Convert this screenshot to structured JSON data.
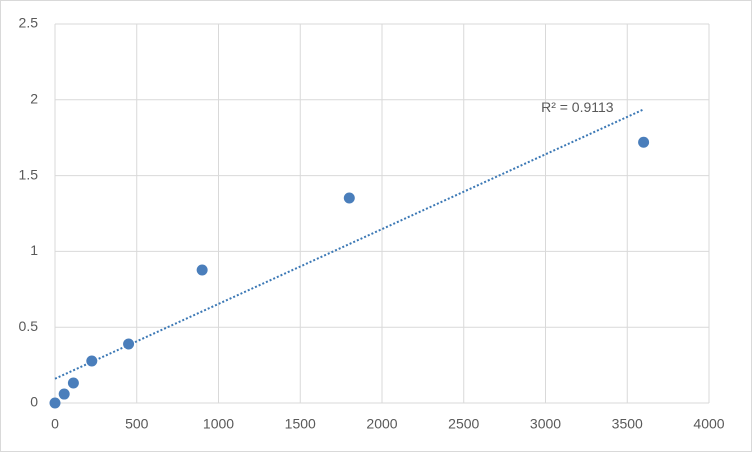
{
  "chart_data": {
    "type": "scatter",
    "x": [
      0,
      56.25,
      112.5,
      225,
      450,
      900,
      1800,
      3600
    ],
    "values": [
      0,
      0.059,
      0.132,
      0.277,
      0.389,
      0.877,
      1.352,
      1.72
    ],
    "color": "#4a7ebb",
    "xlim": [
      0,
      4000
    ],
    "xticks": [
      0,
      500,
      1000,
      1500,
      2000,
      2500,
      3000,
      3500,
      4000
    ],
    "ylim": [
      0,
      2.5
    ],
    "yticks": [
      0,
      0.5,
      1,
      1.5,
      2,
      2.5
    ],
    "grid": true,
    "trendline": {
      "type": "linear",
      "style": "dotted",
      "color": "#3b78b5",
      "label": "R² = 0.9113"
    }
  }
}
